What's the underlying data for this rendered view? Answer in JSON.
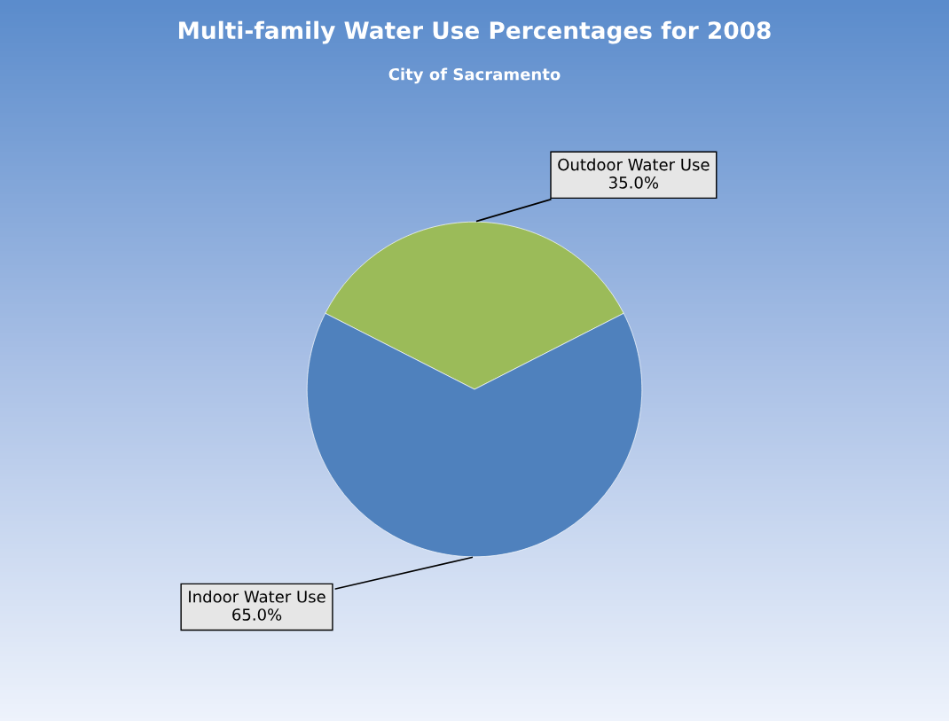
{
  "chart_data": {
    "type": "pie",
    "title": "Multi-family Water Use Percentages for 2008",
    "subtitle": "City of Sacramento",
    "categories": [
      "Outdoor Water Use",
      "Indoor Water Use"
    ],
    "values": [
      35.0,
      65.0
    ],
    "value_labels": [
      "35.0%",
      "65.0%"
    ],
    "colors": [
      "#9bbb59",
      "#4f81bd"
    ]
  }
}
